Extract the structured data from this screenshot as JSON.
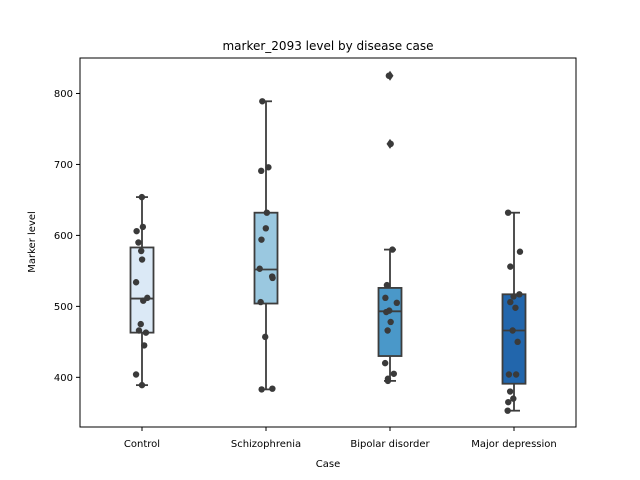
{
  "chart_data": {
    "type": "box",
    "title": "marker_2093 level by disease case",
    "xlabel": "Case",
    "ylabel": "Marker level",
    "ylim": [
      330,
      850
    ],
    "yticks": [
      400,
      500,
      600,
      700,
      800
    ],
    "grid": false,
    "legend": "none",
    "categories": [
      "Control",
      "Schizophrenia",
      "Bipolar disorder",
      "Major depression"
    ],
    "colors": [
      "#dbe9f6",
      "#9ac8e0",
      "#4a98c9",
      "#2266ac"
    ],
    "boxes": [
      {
        "q1": 463,
        "median": 511,
        "q3": 583,
        "whisker_low": 389,
        "whisker_high": 654,
        "outliers": []
      },
      {
        "q1": 504,
        "median": 552,
        "q3": 632,
        "whisker_low": 383,
        "whisker_high": 789,
        "outliers": []
      },
      {
        "q1": 430,
        "median": 493,
        "q3": 526,
        "whisker_low": 395,
        "whisker_high": 580,
        "outliers": [
          729,
          825
        ]
      },
      {
        "q1": 391,
        "median": 466,
        "q3": 517,
        "whisker_low": 353,
        "whisker_high": 632,
        "outliers": []
      }
    ],
    "points": [
      [
        654,
        612,
        606,
        590,
        578,
        566,
        534,
        512,
        508,
        475,
        466,
        463,
        445,
        404,
        389
      ],
      [
        789,
        696,
        691,
        632,
        610,
        594,
        553,
        542,
        540,
        506,
        457,
        384,
        383
      ],
      [
        825,
        729,
        580,
        530,
        512,
        505,
        494,
        492,
        478,
        466,
        420,
        405,
        398,
        395
      ],
      [
        632,
        577,
        556,
        517,
        514,
        506,
        498,
        466,
        450,
        404,
        404,
        380,
        370,
        365,
        353
      ]
    ]
  }
}
